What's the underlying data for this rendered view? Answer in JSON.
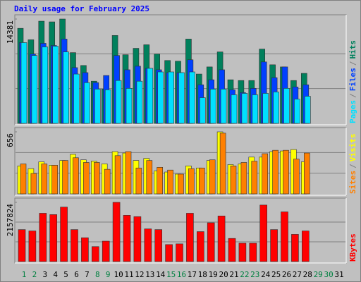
{
  "chart_data": [
    {
      "type": "bar",
      "title": "Daily usage for February 2025",
      "legend_separator": "/",
      "ylim": [
        0,
        14381
      ],
      "yticks": [
        14381
      ],
      "series": [
        {
          "name": "Hits",
          "color": "#00805c",
          "values": [
            13100,
            11525,
            14086,
            13990,
            14381,
            9752,
            7979,
            5812,
            4728,
            12116,
            9456,
            10343,
            10835,
            9555,
            8668,
            8570,
            11623,
            6797,
            7782,
            9850,
            6009,
            5910,
            5910,
            10244,
            8077,
            7782,
            5910,
            6895,
            null,
            null,
            null
          ]
        },
        {
          "name": "Files",
          "color": "#0040ff",
          "values": [
            11131,
            9555,
            11032,
            10737,
            11623,
            7683,
            6994,
            5615,
            6600,
            9358,
            7388,
            7880,
            7585,
            7388,
            6994,
            6994,
            8767,
            5319,
            6009,
            7388,
            4630,
            4236,
            4827,
            8471,
            6304,
            7782,
            5024,
            5319,
            null,
            null,
            null
          ]
        },
        {
          "name": "Pages",
          "color": "#00e0ff",
          "values": [
            11131,
            9358,
            10540,
            10638,
            9850,
            6797,
            5615,
            4728,
            4630,
            5910,
            4827,
            5812,
            7585,
            7092,
            7092,
            6994,
            7092,
            3546,
            4728,
            4728,
            3940,
            4137,
            3940,
            4137,
            4334,
            4827,
            3349,
            3743,
            null,
            null,
            null
          ]
        }
      ]
    },
    {
      "type": "bar",
      "ylim": [
        0,
        656
      ],
      "yticks": [
        656
      ],
      "series": [
        {
          "name": "Visits",
          "color": "#ffff00",
          "values": [
            296,
            267,
            339,
            303,
            353,
            418,
            360,
            346,
            317,
            447,
            432,
            353,
            375,
            245,
            231,
            209,
            296,
            274,
            353,
            656,
            310,
            317,
            389,
            389,
            447,
            454,
            469,
            339,
            null,
            null,
            null
          ]
        },
        {
          "name": "Sites",
          "color": "#ff8000",
          "values": [
            317,
            216,
            317,
            303,
            353,
            382,
            332,
            332,
            260,
            404,
            447,
            274,
            353,
            281,
            252,
            209,
            267,
            274,
            360,
            642,
            296,
            332,
            346,
            425,
            461,
            461,
            368,
            432,
            null,
            null,
            null
          ]
        }
      ]
    },
    {
      "type": "bar",
      "ylim": [
        0,
        2157824
      ],
      "yticks": [
        2157824
      ],
      "categories": [
        "1",
        "2",
        "3",
        "4",
        "5",
        "6",
        "7",
        "8",
        "9",
        "10",
        "11",
        "12",
        "13",
        "14",
        "15",
        "16",
        "17",
        "18",
        "19",
        "20",
        "21",
        "22",
        "23",
        "24",
        "25",
        "26",
        "27",
        "28",
        "29",
        "30",
        "31"
      ],
      "category_colors": [
        "#008040",
        "#008040",
        "#000000",
        "#000000",
        "#000000",
        "#000000",
        "#000000",
        "#008040",
        "#008040",
        "#000000",
        "#000000",
        "#000000",
        "#000000",
        "#000000",
        "#008040",
        "#008040",
        "#000000",
        "#000000",
        "#000000",
        "#000000",
        "#000000",
        "#008040",
        "#008040",
        "#000000",
        "#000000",
        "#000000",
        "#000000",
        "#000000",
        "#008040",
        "#008040",
        "#000000"
      ],
      "series": [
        {
          "name": "KBytes",
          "color": "#ff0000",
          "values": [
            1165700,
            1116000,
            1761000,
            1711000,
            1984000,
            1165700,
            868000,
            545600,
            744000,
            2157824,
            1686600,
            1637000,
            1190500,
            1165700,
            620000,
            644900,
            1761000,
            1091300,
            1413700,
            1661700,
            843300,
            669700,
            669700,
            2058600,
            1165700,
            1810600,
            992100,
            1116000,
            null,
            null,
            null
          ]
        }
      ]
    }
  ]
}
